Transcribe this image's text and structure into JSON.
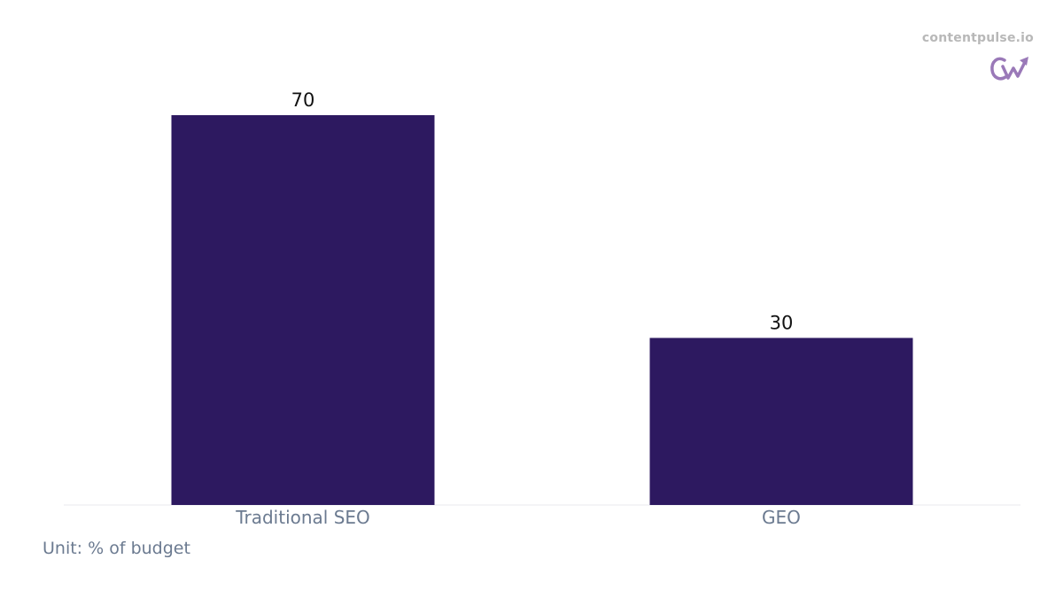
{
  "brand": {
    "name": "contentpulse.io",
    "logo_icon": "cw-trend-logo-icon"
  },
  "footnote": "Unit: % of budget",
  "colors": {
    "bar": "#2d1960",
    "value_label": "#111111",
    "tick_label": "#6b7a90",
    "axis_line": "#e8e8ee",
    "brand_text": "#b8b8b8",
    "logo": "#9a79b8"
  },
  "chart_data": {
    "type": "bar",
    "categories": [
      "Traditional SEO",
      "GEO"
    ],
    "values": [
      70,
      30
    ],
    "title": "",
    "xlabel": "",
    "ylabel": "",
    "ylim": [
      0,
      70
    ],
    "grid": false,
    "legend": "none",
    "data_labels": [
      "70",
      "30"
    ]
  }
}
